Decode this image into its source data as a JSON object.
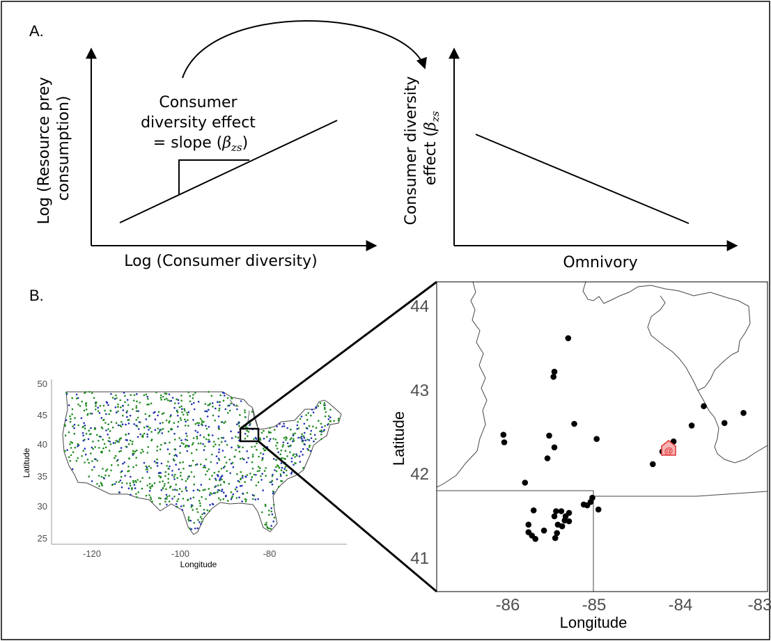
{
  "panel_a": {
    "label": "A.",
    "left_plot": {
      "ylabel_line1": "Log (Resource prey",
      "ylabel_line2": "consumption)",
      "xlabel": "Log (Consumer diversity)",
      "annotation_line1": "Consumer",
      "annotation_line2": "diversity effect",
      "annotation_line3_prefix": "= slope (",
      "annotation_symbol": "β",
      "annotation_subscript": "zs",
      "annotation_suffix": ")"
    },
    "right_plot": {
      "ylabel_line1": "Consumer diversity",
      "ylabel_line2_prefix": "effect (",
      "ylabel_symbol": "β",
      "ylabel_subscript": "zs",
      "xlabel": "Omnivory"
    }
  },
  "panel_b": {
    "label": "B.",
    "us_map": {
      "xlabel": "Longitude",
      "ylabel": "Latitude",
      "x_ticks": [
        "-120",
        "-100",
        "-80"
      ],
      "y_ticks": [
        "50",
        "45",
        "40",
        "35",
        "30",
        "25"
      ],
      "dot_colors": [
        "#1e8a1e",
        "#1f2fb0"
      ]
    },
    "inset_map": {
      "xlabel": "Longitude",
      "ylabel": "Latitude",
      "x_ticks": [
        "-86",
        "-85",
        "-84",
        "-83"
      ],
      "y_ticks": [
        "44",
        "43",
        "42",
        "41"
      ],
      "marker_symbol": "@",
      "marker_color": "#e03030",
      "sites": [
        [
          -85.3,
          43.62
        ],
        [
          -85.46,
          43.22
        ],
        [
          -85.47,
          43.16
        ],
        [
          -85.23,
          42.6
        ],
        [
          -86.05,
          42.47
        ],
        [
          -86.04,
          42.38
        ],
        [
          -85.52,
          42.46
        ],
        [
          -85.46,
          42.32
        ],
        [
          -85.54,
          42.19
        ],
        [
          -84.97,
          42.42
        ],
        [
          -85.8,
          41.9
        ],
        [
          -83.73,
          42.81
        ],
        [
          -83.27,
          42.73
        ],
        [
          -83.49,
          42.61
        ],
        [
          -83.87,
          42.58
        ],
        [
          -84.08,
          42.39
        ],
        [
          -84.21,
          42.27
        ],
        [
          -84.32,
          42.12
        ],
        [
          -85.02,
          41.72
        ],
        [
          -85.04,
          41.67
        ],
        [
          -85.08,
          41.63
        ],
        [
          -84.95,
          41.58
        ],
        [
          -85.12,
          41.64
        ],
        [
          -85.7,
          41.57
        ],
        [
          -85.44,
          41.56
        ],
        [
          -85.38,
          41.56
        ],
        [
          -85.29,
          41.54
        ],
        [
          -85.46,
          41.5
        ],
        [
          -85.33,
          41.5
        ],
        [
          -85.76,
          41.4
        ],
        [
          -85.42,
          41.4
        ],
        [
          -85.34,
          41.45
        ],
        [
          -85.58,
          41.33
        ],
        [
          -85.76,
          41.31
        ],
        [
          -85.72,
          41.27
        ],
        [
          -85.68,
          41.23
        ],
        [
          -85.45,
          41.24
        ],
        [
          -85.43,
          41.3
        ],
        [
          -85.37,
          41.38
        ],
        [
          -85.29,
          41.44
        ]
      ]
    }
  }
}
